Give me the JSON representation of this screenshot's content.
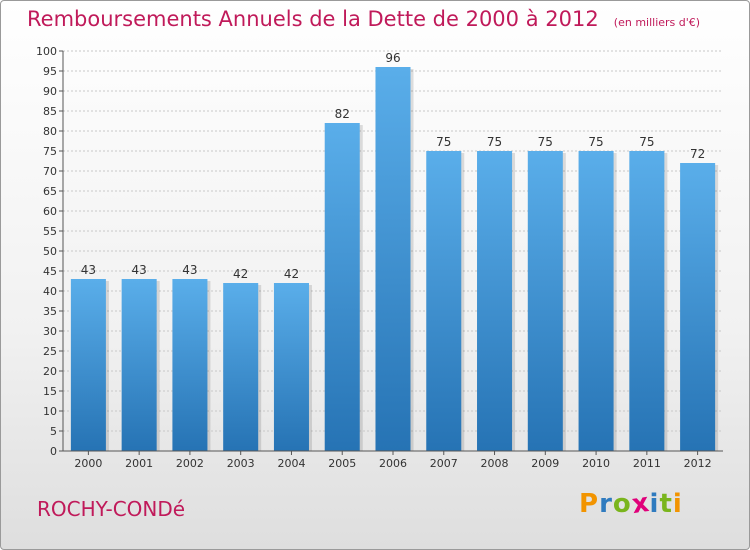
{
  "header": {
    "title": "Remboursements Annuels de la Dette de 2000 à 2012",
    "unit": "(en milliers d'€)"
  },
  "footer": {
    "commune": "ROCHY-CONDé",
    "brand_letters": [
      "P",
      "r",
      "o",
      "x",
      "i",
      "t",
      "i"
    ],
    "brand_colors": [
      "#f29400",
      "#2f7bbf",
      "#7ab51d",
      "#e0007a",
      "#2f7bbf",
      "#7ab51d",
      "#f29400"
    ]
  },
  "chart_data": {
    "type": "bar",
    "categories": [
      "2000",
      "2001",
      "2002",
      "2003",
      "2004",
      "2005",
      "2006",
      "2007",
      "2008",
      "2009",
      "2010",
      "2011",
      "2012"
    ],
    "values": [
      43,
      43,
      43,
      42,
      42,
      82,
      96,
      75,
      75,
      75,
      75,
      75,
      72
    ],
    "title": "Remboursements Annuels de la Dette de 2000 à 2012",
    "xlabel": "",
    "ylabel": "",
    "ylim": [
      0,
      100
    ],
    "yticks": [
      0,
      5,
      10,
      15,
      20,
      25,
      30,
      35,
      40,
      45,
      50,
      55,
      60,
      65,
      70,
      75,
      80,
      85,
      90,
      95,
      100
    ],
    "grid": true,
    "bar_color_top": "#5aaeea",
    "bar_color_bottom": "#2673b4"
  }
}
